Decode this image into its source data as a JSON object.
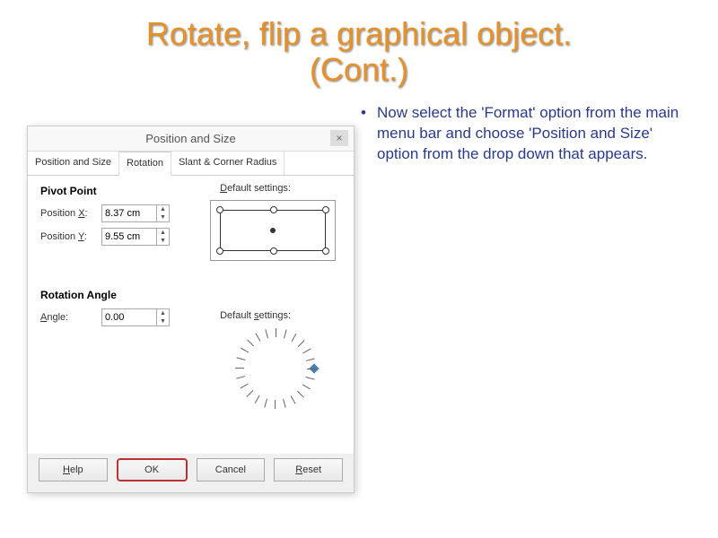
{
  "slide": {
    "title_line1": "Rotate, flip a graphical object.",
    "title_line2": "(Cont.)",
    "title_color": "#e89028",
    "instruction": "Now select the 'Format' option from the main menu bar and choose 'Position and Size' option from the drop down that appears."
  },
  "dialog": {
    "title": "Position and Size",
    "tabs": [
      "Position and Size",
      "Rotation",
      "Slant & Corner Radius"
    ],
    "active_tab": 1,
    "pivot": {
      "section_label": "Pivot Point",
      "x_label": "Position X:",
      "x_value": "8.37 cm",
      "y_label": "Position Y:",
      "y_value": "9.55 cm",
      "default_label": "Default settings:"
    },
    "rotation": {
      "section_label": "Rotation Angle",
      "angle_label": "Angle:",
      "angle_value": "0.00",
      "default_label": "Default settings:"
    },
    "buttons": {
      "help": "Help",
      "ok": "OK",
      "cancel": "Cancel",
      "reset": "Reset"
    }
  },
  "colors": {
    "dialog_bg": "#f0f0f0",
    "tab_active_bg": "#ffffff",
    "ok_highlight": "#c03030",
    "instruction_text": "#2a3a8a"
  }
}
